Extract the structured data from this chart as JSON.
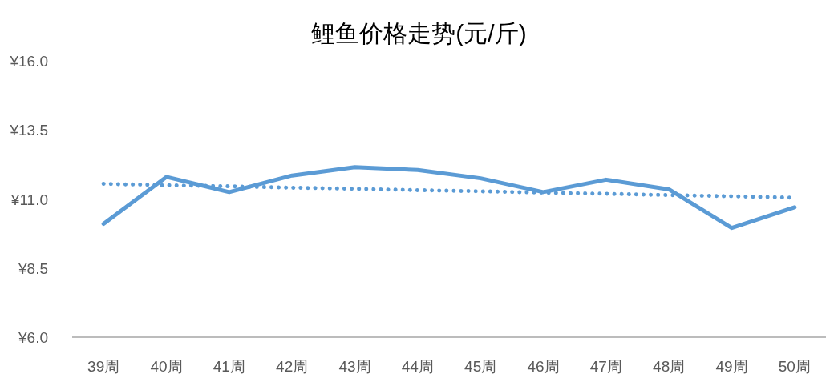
{
  "chart_data": {
    "type": "line",
    "title": "鲤鱼价格走势(元/斤)",
    "categories": [
      "39周",
      "40周",
      "41周",
      "42周",
      "43周",
      "44周",
      "45周",
      "46周",
      "47周",
      "48周",
      "49周",
      "50周"
    ],
    "series": [
      {
        "color": "#5b9bd5",
        "line_style": "solid",
        "values": [
          10.1,
          11.8,
          11.25,
          11.85,
          12.15,
          12.05,
          11.75,
          11.25,
          11.7,
          11.35,
          9.95,
          10.7
        ]
      },
      {
        "color": "#5b9bd5",
        "line_style": "dotted",
        "values": [
          11.55,
          11.5,
          11.46,
          11.41,
          11.37,
          11.32,
          11.28,
          11.23,
          11.19,
          11.14,
          11.1,
          11.05
        ]
      }
    ],
    "ylim": [
      6,
      16
    ],
    "yticks": [
      {
        "value": 6,
        "label": "¥6.0"
      },
      {
        "value": 8.5,
        "label": "¥8.5"
      },
      {
        "value": 11,
        "label": "¥11.0"
      },
      {
        "value": 13.5,
        "label": "¥13.5"
      },
      {
        "value": 16,
        "label": "¥16.0"
      }
    ],
    "grid": false,
    "marker": "none"
  }
}
